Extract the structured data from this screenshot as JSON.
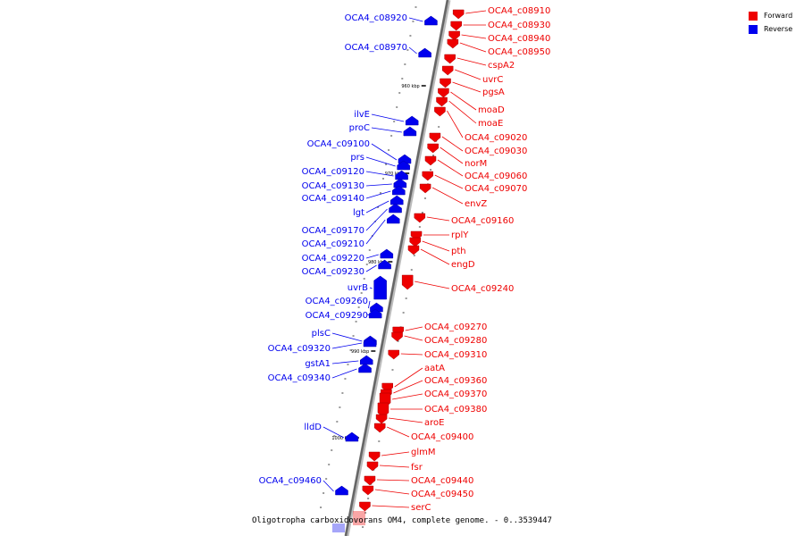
{
  "legend": {
    "forward_label": "Forward",
    "reverse_label": "Reverse",
    "forward_color": "#ee0000",
    "reverse_color": "#0000ee"
  },
  "caption": "Oligotropha carboxidovorans OM4, complete genome. - 0..3539447",
  "ticks": [
    "960 kbp",
    "970 kbp",
    "980 kbp",
    "990 kbp",
    "1000 kbp"
  ],
  "forward_genes": [
    "OCA4_c08910",
    "OCA4_c08930",
    "OCA4_c08940",
    "OCA4_c08950",
    "cspA2",
    "uvrC",
    "pgsA",
    "moaD",
    "moaE",
    "OCA4_c09020",
    "OCA4_c09030",
    "norM",
    "OCA4_c09060",
    "OCA4_c09070",
    "envZ",
    "OCA4_c09160",
    "rplY",
    "pth",
    "engD",
    "OCA4_c09240",
    "OCA4_c09270",
    "OCA4_c09280",
    "OCA4_c09310",
    "aatA",
    "OCA4_c09360",
    "OCA4_c09370",
    "OCA4_c09380",
    "aroE",
    "OCA4_c09400",
    "glmM",
    "fsr",
    "OCA4_c09440",
    "OCA4_c09450",
    "serC"
  ],
  "reverse_genes": [
    "OCA4_c08920",
    "OCA4_c08970",
    "ilvE",
    "proC",
    "OCA4_c09100",
    "prs",
    "OCA4_c09120",
    "OCA4_c09130",
    "OCA4_c09140",
    "lgt",
    "OCA4_c09170",
    "OCA4_c09210",
    "OCA4_c09220",
    "OCA4_c09230",
    "uvrB",
    "OCA4_c09260",
    "OCA4_c09290",
    "plsC",
    "OCA4_c09320",
    "gstA1",
    "OCA4_c09340",
    "lldD",
    "OCA4_c09460"
  ]
}
